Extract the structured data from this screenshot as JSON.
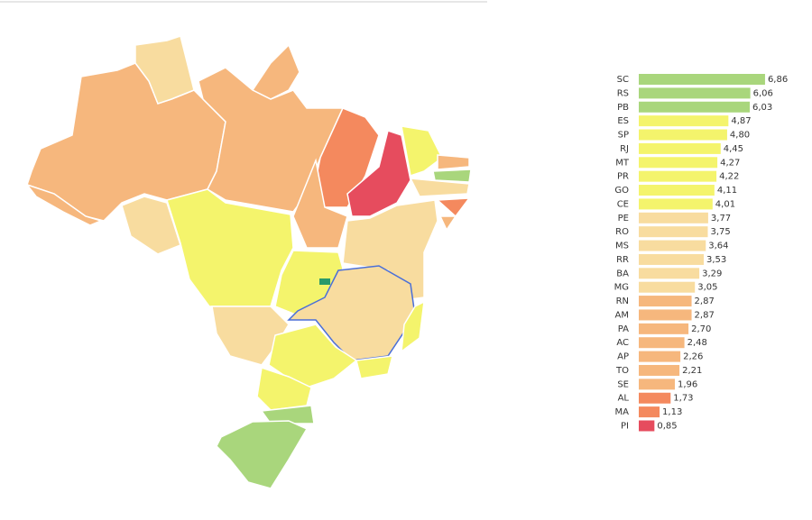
{
  "chart_data": {
    "type": "bar",
    "orientation": "horizontal",
    "categories": [
      "SC",
      "RS",
      "PB",
      "ES",
      "SP",
      "RJ",
      "MT",
      "PR",
      "GO",
      "CE",
      "PE",
      "RO",
      "MS",
      "RR",
      "BA",
      "MG",
      "RN",
      "AM",
      "PA",
      "AC",
      "AP",
      "TO",
      "SE",
      "AL",
      "MA",
      "PI"
    ],
    "values": [
      6.86,
      6.06,
      6.03,
      4.87,
      4.8,
      4.45,
      4.27,
      4.22,
      4.11,
      4.01,
      3.77,
      3.75,
      3.64,
      3.53,
      3.29,
      3.05,
      2.87,
      2.87,
      2.7,
      2.48,
      2.26,
      2.21,
      1.96,
      1.73,
      1.13,
      0.85
    ],
    "value_labels": [
      "6,86",
      "6,06",
      "6,03",
      "4,87",
      "4,80",
      "4,45",
      "4,27",
      "4,22",
      "4,11",
      "4,01",
      "3,77",
      "3,75",
      "3,64",
      "3,53",
      "3,29",
      "3,05",
      "2,87",
      "2,87",
      "2,70",
      "2,48",
      "2,26",
      "2,21",
      "1,96",
      "1,73",
      "1,13",
      "0,85"
    ],
    "colors": [
      "#a9d67c",
      "#a9d67c",
      "#a9d67c",
      "#f4f46c",
      "#f4f46c",
      "#f4f46c",
      "#f4f46c",
      "#f4f46c",
      "#f4f46c",
      "#f4f46c",
      "#f8dc9f",
      "#f8dc9f",
      "#f8dc9f",
      "#f8dc9f",
      "#f8dc9f",
      "#f8dc9f",
      "#f6b77d",
      "#f6b77d",
      "#f6b77d",
      "#f6b77d",
      "#f6b77d",
      "#f6b77d",
      "#f6b77d",
      "#f4895e",
      "#f4895e",
      "#e64c5e"
    ]
  }
}
